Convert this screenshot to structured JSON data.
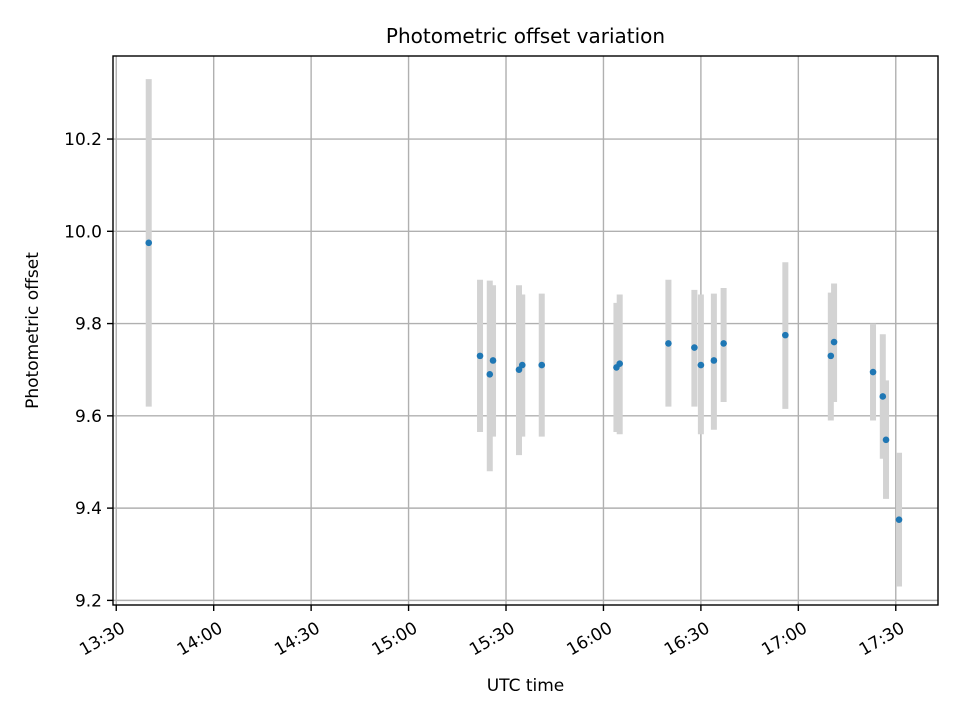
{
  "chart_data": {
    "type": "scatter",
    "title": "Photometric offset variation",
    "xlabel": "UTC time",
    "ylabel": "Photometric offset",
    "x_tick_labels": [
      "13:30",
      "14:00",
      "14:30",
      "15:00",
      "15:30",
      "16:00",
      "16:30",
      "17:00",
      "17:30"
    ],
    "y_tick_labels": [
      "9.2",
      "9.4",
      "9.6",
      "9.8",
      "10.0",
      "10.2"
    ],
    "grid": true,
    "legend": "none",
    "marker_color": "#1f77b4",
    "errorbar_color": "#d3d3d3",
    "xlim": [
      "13:29",
      "17:43"
    ],
    "ylim": [
      9.19,
      10.38
    ],
    "points": [
      {
        "time": "13:40",
        "offset": 9.975,
        "err_low": 9.62,
        "err_high": 10.33
      },
      {
        "time": "15:22",
        "offset": 9.73,
        "err_low": 9.565,
        "err_high": 9.895
      },
      {
        "time": "15:25",
        "offset": 9.69,
        "err_low": 9.48,
        "err_high": 9.893
      },
      {
        "time": "15:26",
        "offset": 9.72,
        "err_low": 9.555,
        "err_high": 9.883
      },
      {
        "time": "15:34",
        "offset": 9.7,
        "err_low": 9.515,
        "err_high": 9.883
      },
      {
        "time": "15:35",
        "offset": 9.71,
        "err_low": 9.555,
        "err_high": 9.863
      },
      {
        "time": "15:41",
        "offset": 9.71,
        "err_low": 9.555,
        "err_high": 9.865
      },
      {
        "time": "16:04",
        "offset": 9.705,
        "err_low": 9.565,
        "err_high": 9.845
      },
      {
        "time": "16:05",
        "offset": 9.713,
        "err_low": 9.56,
        "err_high": 9.863
      },
      {
        "time": "16:20",
        "offset": 9.757,
        "err_low": 9.62,
        "err_high": 9.895
      },
      {
        "time": "16:28",
        "offset": 9.748,
        "err_low": 9.62,
        "err_high": 9.873
      },
      {
        "time": "16:30",
        "offset": 9.71,
        "err_low": 9.56,
        "err_high": 9.863
      },
      {
        "time": "16:34",
        "offset": 9.72,
        "err_low": 9.57,
        "err_high": 9.865
      },
      {
        "time": "16:37",
        "offset": 9.757,
        "err_low": 9.63,
        "err_high": 9.877
      },
      {
        "time": "16:56",
        "offset": 9.775,
        "err_low": 9.615,
        "err_high": 9.933
      },
      {
        "time": "17:10",
        "offset": 9.73,
        "err_low": 9.59,
        "err_high": 9.867
      },
      {
        "time": "17:11",
        "offset": 9.76,
        "err_low": 9.63,
        "err_high": 9.887
      },
      {
        "time": "17:23",
        "offset": 9.695,
        "err_low": 9.59,
        "err_high": 9.8
      },
      {
        "time": "17:26",
        "offset": 9.642,
        "err_low": 9.507,
        "err_high": 9.777
      },
      {
        "time": "17:27",
        "offset": 9.548,
        "err_low": 9.42,
        "err_high": 9.677
      },
      {
        "time": "17:31",
        "offset": 9.375,
        "err_low": 9.23,
        "err_high": 9.52
      }
    ]
  }
}
